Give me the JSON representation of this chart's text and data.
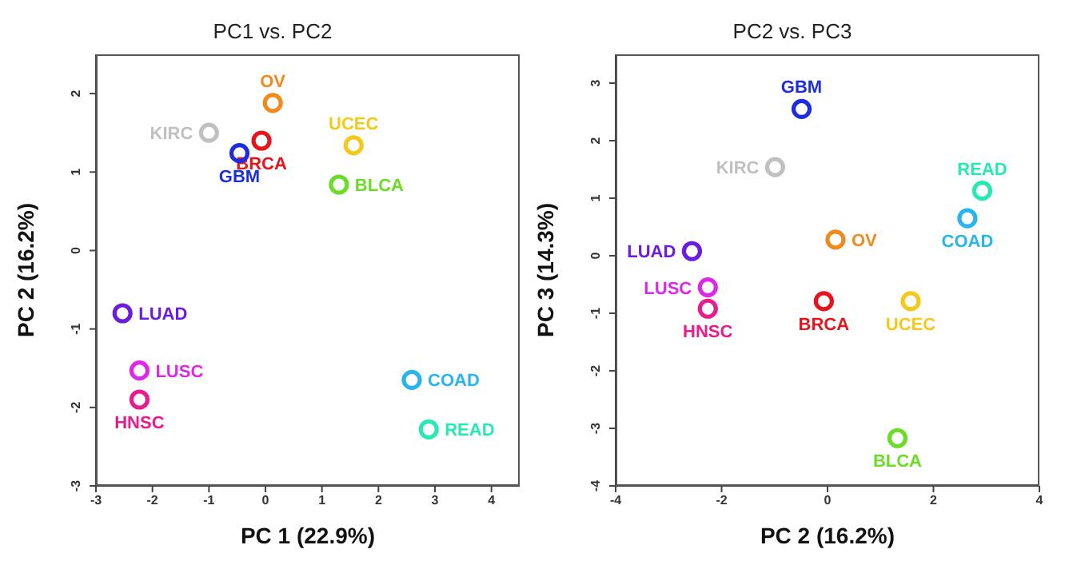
{
  "chart_data": [
    {
      "type": "scatter",
      "title": "PC1 vs. PC2",
      "xlabel": "PC 1 (22.9%)",
      "ylabel": "PC 2 (16.2%)",
      "xlim": [
        -3,
        4.5
      ],
      "ylim": [
        -3,
        2.5
      ],
      "xticks": [
        -3,
        -2,
        -1,
        0,
        1,
        2,
        3,
        4
      ],
      "yticks": [
        -3,
        -2,
        -1,
        0,
        1,
        2
      ],
      "marker": "circle",
      "grid": false,
      "legend": false,
      "series": [
        {
          "name": "BRCA",
          "color": "#e8141c",
          "x": [
            -0.07
          ],
          "values": [
            1.4
          ]
        },
        {
          "name": "BLCA",
          "color": "#6cdc28",
          "x": [
            1.3
          ],
          "values": [
            0.84
          ]
        },
        {
          "name": "COAD",
          "color": "#28b4f0",
          "x": [
            2.59
          ],
          "values": [
            -1.65
          ]
        },
        {
          "name": "GBM",
          "color": "#1c2ce0",
          "x": [
            -0.46
          ],
          "values": [
            1.24
          ]
        },
        {
          "name": "HNSC",
          "color": "#e81c8c",
          "x": [
            -2.23
          ],
          "values": [
            -1.9
          ]
        },
        {
          "name": "KIRC",
          "color": "#c0c0c0",
          "x": [
            -1.0
          ],
          "values": [
            1.5
          ]
        },
        {
          "name": "LUAD",
          "color": "#6a1ce0",
          "x": [
            -2.53
          ],
          "values": [
            -0.8
          ]
        },
        {
          "name": "LUSC",
          "color": "#dc28e8",
          "x": [
            -2.23
          ],
          "values": [
            -1.53
          ]
        },
        {
          "name": "OV",
          "color": "#f08a1c",
          "x": [
            0.13
          ],
          "values": [
            1.88
          ]
        },
        {
          "name": "READ",
          "color": "#28e8b4",
          "x": [
            2.89
          ],
          "values": [
            -2.28
          ]
        },
        {
          "name": "UCEC",
          "color": "#f5c81c",
          "x": [
            1.56
          ],
          "values": [
            1.34
          ]
        }
      ]
    },
    {
      "type": "scatter",
      "title": "PC2 vs. PC3",
      "xlabel": "PC 2 (16.2%)",
      "ylabel": "PC 3 (14.3%)",
      "xlim": [
        -4,
        4
      ],
      "ylim": [
        -4,
        3.5
      ],
      "xticks": [
        -4,
        -2,
        0,
        2,
        4
      ],
      "yticks": [
        -4,
        -3,
        -2,
        -1,
        0,
        1,
        2,
        3
      ],
      "marker": "circle",
      "grid": false,
      "legend": false,
      "series": [
        {
          "name": "BRCA",
          "color": "#e8141c",
          "x": [
            -0.07
          ],
          "values": [
            -0.79
          ]
        },
        {
          "name": "BLCA",
          "color": "#6cdc28",
          "x": [
            1.32
          ],
          "values": [
            -3.17
          ]
        },
        {
          "name": "COAD",
          "color": "#28b4f0",
          "x": [
            2.64
          ],
          "values": [
            0.65
          ]
        },
        {
          "name": "GBM",
          "color": "#1c2ce0",
          "x": [
            -0.49
          ],
          "values": [
            2.55
          ]
        },
        {
          "name": "HNSC",
          "color": "#e81c8c",
          "x": [
            -2.26
          ],
          "values": [
            -0.92
          ]
        },
        {
          "name": "KIRC",
          "color": "#c0c0c0",
          "x": [
            -0.99
          ],
          "values": [
            1.54
          ]
        },
        {
          "name": "LUAD",
          "color": "#6a1ce0",
          "x": [
            -2.56
          ],
          "values": [
            0.08
          ]
        },
        {
          "name": "LUSC",
          "color": "#dc28e8",
          "x": [
            -2.26
          ],
          "values": [
            -0.55
          ]
        },
        {
          "name": "OV",
          "color": "#f08a1c",
          "x": [
            0.15
          ],
          "values": [
            0.28
          ]
        },
        {
          "name": "READ",
          "color": "#28e8b4",
          "x": [
            2.92
          ],
          "values": [
            1.13
          ]
        },
        {
          "name": "UCEC",
          "color": "#f5c81c",
          "x": [
            1.57
          ],
          "values": [
            -0.79
          ]
        }
      ]
    }
  ]
}
